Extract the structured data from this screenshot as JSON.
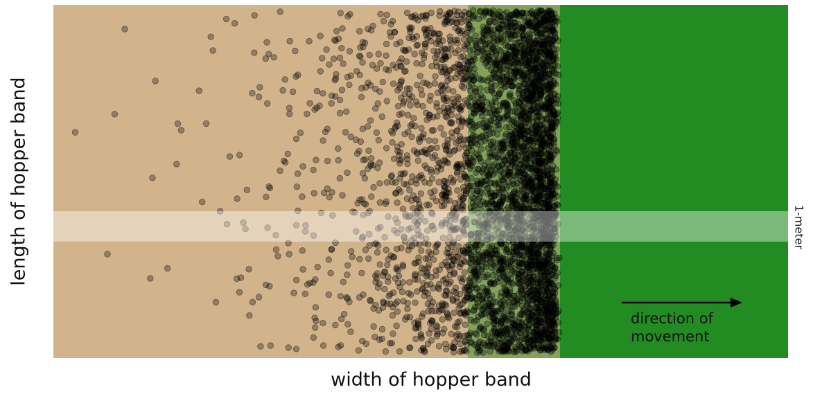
{
  "chart_data": {
    "type": "scatter",
    "title": "",
    "xlabel": "width of hopper band",
    "ylabel": "length of hopper band",
    "annotations": {
      "band_label": "1-meter",
      "arrow_label": "direction of movement",
      "arrow_label_lines": [
        "direction of",
        "movement"
      ]
    },
    "legend": "none",
    "grid": false,
    "regions": [
      {
        "name": "bare ground",
        "color": "#d2b48c"
      },
      {
        "name": "vegetation",
        "color": "#228b22"
      }
    ],
    "marker_color": "#000000",
    "marker_alpha": 0.3,
    "distribution": {
      "description_density": "dense front near right edge, sparse tail to left",
      "point_count": 4200
    }
  }
}
